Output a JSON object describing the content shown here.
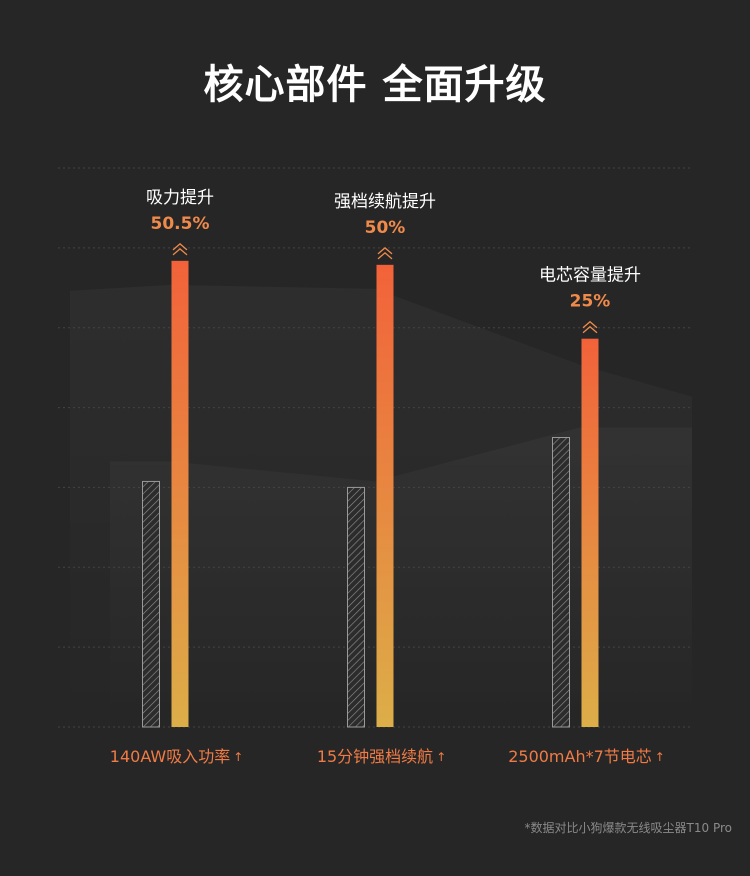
{
  "title": "核心部件 全面升级",
  "footnote": "*数据对比小狗爆款无线吸尘器T10 Pro",
  "colors": {
    "background": "#262626",
    "bar_top": "#f2623a",
    "bar_bottom": "#dcae48",
    "improve_label": "#f08a4b",
    "category_label": "#f07b45",
    "baseline_bar": "#9a9a9a",
    "grid": "#444444"
  },
  "chart_data": {
    "type": "bar",
    "categories": [
      "140AW吸入功率",
      "15分钟强档续航",
      "2500mAh*7节电芯"
    ],
    "category_arrow": "↑",
    "improvements": [
      {
        "label": "吸力提升",
        "value": "50.5%"
      },
      {
        "label": "强档续航提升",
        "value": "50%"
      },
      {
        "label": "电芯容量提升",
        "value": "25%"
      }
    ],
    "series": [
      {
        "name": "",
        "values": [
          246,
          240,
          290
        ]
      },
      {
        "name": "",
        "values": [
          467,
          463,
          389
        ]
      }
    ],
    "ylim": [
      0,
      560
    ],
    "grid": true,
    "legend": "none"
  }
}
